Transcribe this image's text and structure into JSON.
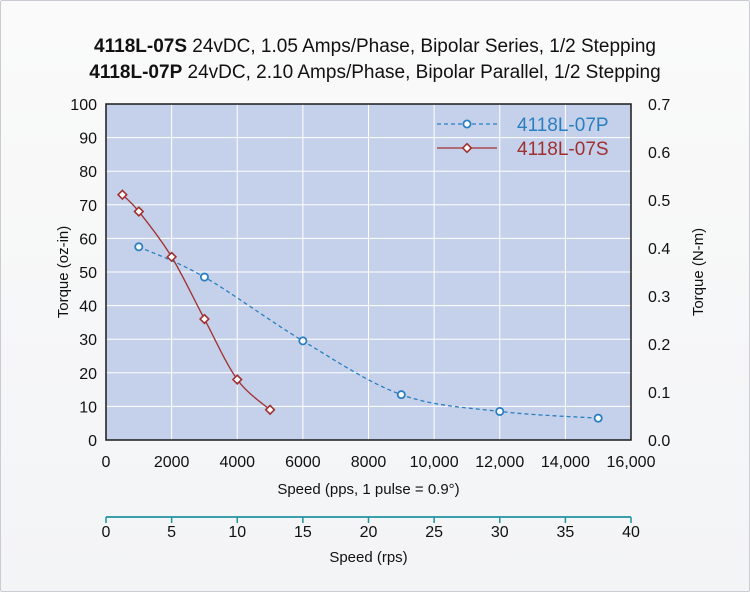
{
  "title_lines": [
    {
      "bold": "4118L-07S",
      "rest": " 24vDC, 1.05 Amps/Phase, Bipolar Series, 1/2 Stepping"
    },
    {
      "bold": "4118L-07P",
      "rest": " 24vDC, 2.10 Amps/Phase, Bipolar Parallel, 1/2 Stepping"
    }
  ],
  "chart_data": {
    "type": "line",
    "xlabel": "Speed (pps, 1 pulse = 0.9°)",
    "ylabel_left": "Torque (oz-in)",
    "ylabel_right": "Torque (N-m)",
    "x2label": "Speed (rps)",
    "xlim": [
      0,
      16000
    ],
    "ylim": [
      0,
      100
    ],
    "y2lim": [
      0,
      0.7
    ],
    "x2lim": [
      0,
      40
    ],
    "xticks": [
      "0",
      "2000",
      "4000",
      "6000",
      "8000",
      "10,000",
      "12,000",
      "14,000",
      "16,000"
    ],
    "yticks": [
      "0",
      "10",
      "20",
      "30",
      "40",
      "50",
      "60",
      "70",
      "80",
      "90",
      "100"
    ],
    "y2ticks": [
      "0.0",
      "0.1",
      "0.2",
      "0.3",
      "0.4",
      "0.5",
      "0.6",
      "0.7"
    ],
    "x2ticks": [
      "0",
      "5",
      "10",
      "15",
      "20",
      "25",
      "30",
      "35",
      "40"
    ],
    "legend_position": "top-right",
    "grid": true,
    "series": [
      {
        "name": "4118L-07P",
        "color": "#2a7fc0",
        "marker": "circle",
        "line": "dashed",
        "x": [
          1000,
          3000,
          6000,
          9000,
          12000,
          15000
        ],
        "y": [
          57.5,
          48.5,
          29.5,
          13.5,
          8.5,
          6.5
        ]
      },
      {
        "name": "4118L-07S",
        "color": "#a03030",
        "marker": "diamond",
        "line": "solid",
        "x": [
          500,
          1000,
          2000,
          3000,
          4000,
          5000
        ],
        "y": [
          73,
          68,
          54.5,
          36,
          18,
          9
        ]
      }
    ]
  }
}
